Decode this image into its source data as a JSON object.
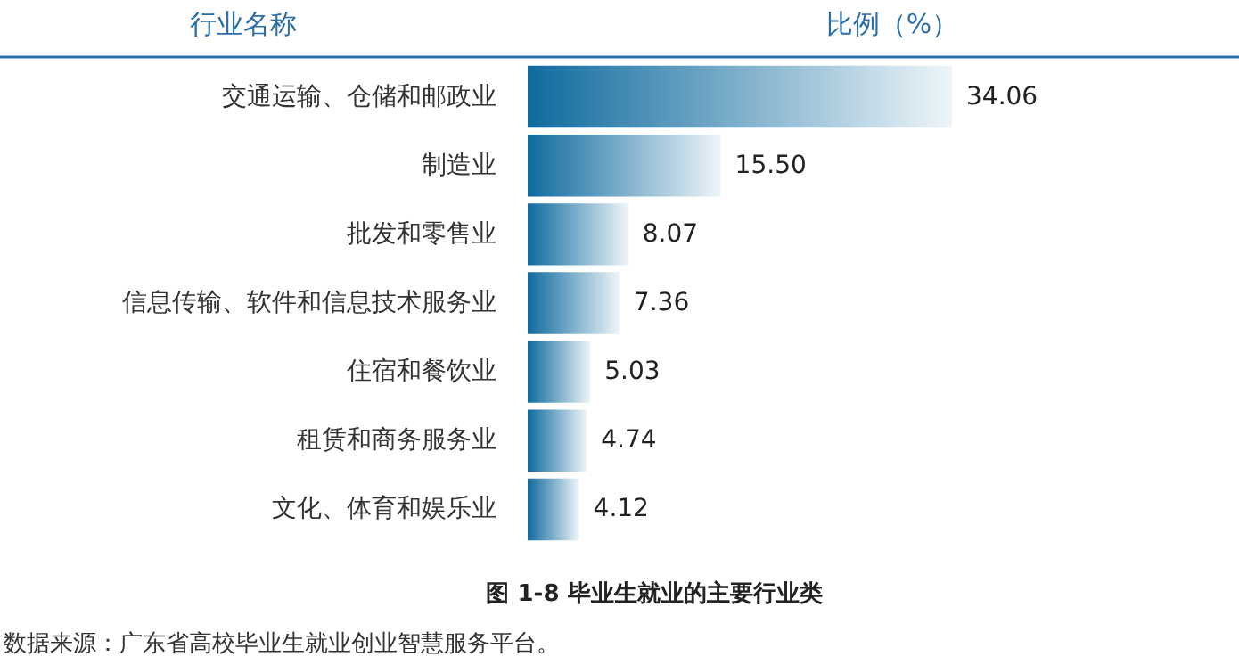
{
  "chart_data": {
    "type": "bar",
    "orientation": "horizontal",
    "title": "图 1-8        毕业生就业的主要行业类",
    "xlabel": "比例（%）",
    "ylabel": "行业名称",
    "categories": [
      "交通运输、仓储和邮政业",
      "制造业",
      "批发和零售业",
      "信息传输、软件和信息技术服务业",
      "住宿和餐饮业",
      "租赁和商务服务业",
      "文化、体育和娱乐业"
    ],
    "values": [
      34.06,
      15.5,
      8.07,
      7.36,
      5.03,
      4.74,
      4.12
    ],
    "color": "#0f6a9e",
    "value_labels": [
      "34.06",
      "15.50",
      "8.07",
      "7.36",
      "5.03",
      "4.74",
      "4.12"
    ],
    "grid": false,
    "annotations": [
      "数据来源：广东省高校毕业生就业创业智慧服务平台。"
    ]
  }
}
